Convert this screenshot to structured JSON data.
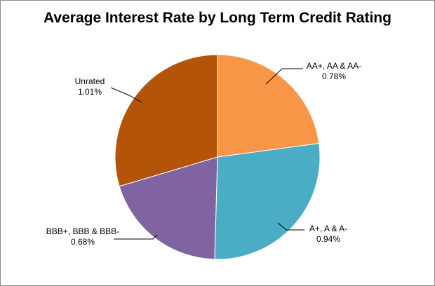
{
  "chart_data": {
    "type": "pie",
    "title": "Average Interest Rate by Long Term Credit Rating",
    "slices": [
      {
        "label": "AA+, AA & AA-",
        "value": 0.78,
        "value_label": "0.78%",
        "color": "#f79646"
      },
      {
        "label": "A+, A & A-",
        "value": 0.94,
        "value_label": "0.94%",
        "color": "#4bacc6"
      },
      {
        "label": "BBB+, BBB & BBB-",
        "value": 0.68,
        "value_label": "0.68%",
        "color": "#8064a2"
      },
      {
        "label": "Unrated",
        "value": 1.01,
        "value_label": "1.01%",
        "color": "#b45409"
      }
    ],
    "start": "12 o'clock",
    "direction": "clockwise",
    "legend": "none",
    "data_labels": "outside with leader lines"
  }
}
